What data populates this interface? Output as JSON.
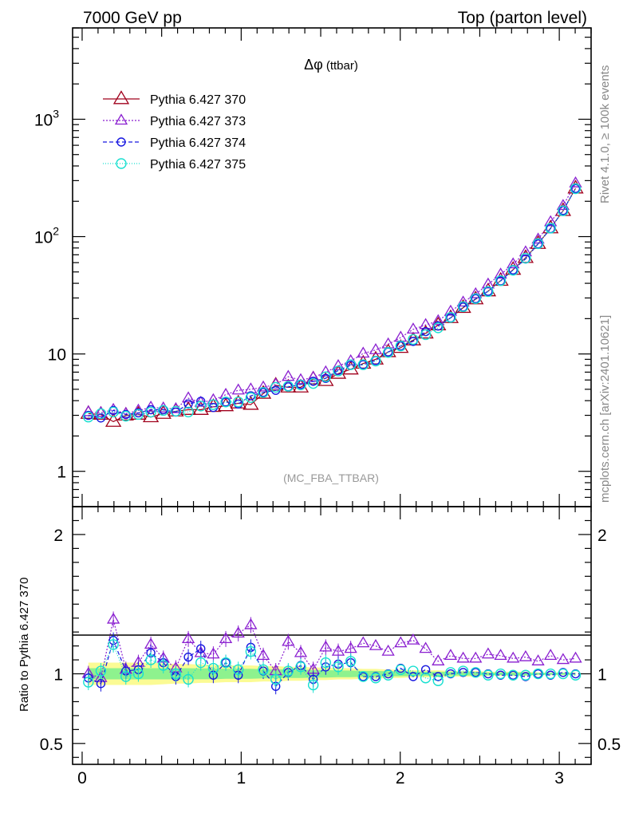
{
  "header": {
    "energy_label": "7000 GeV pp",
    "process_label": "Top (parton level)"
  },
  "side_labels": {
    "rivet": "Rivet 4.1.0, ≥ 100k events",
    "mcplots": "mcplots.cern.ch [arXiv:2401.10621]"
  },
  "colors": {
    "s370": "#a0001c",
    "s373": "#8a1fd0",
    "s374": "#1818e0",
    "s375": "#18e0d0",
    "band_outer": "#fbfb94",
    "band_inner": "#8ef28e"
  },
  "chart_data": [
    {
      "type": "line",
      "panel": "main",
      "title_symbol": "Δφ",
      "title_suffix": "(ttbar)",
      "analysis_label": "(MC_FBA_TTBAR)",
      "xlabel": "",
      "ylabel": "",
      "yscale": "log",
      "xlim": [
        -0.06,
        3.2
      ],
      "ylim": [
        0.5,
        6000
      ],
      "y_ticks": [
        1,
        10,
        100,
        1000
      ],
      "y_tick_labels": [
        "1",
        "10",
        "10^2",
        "10^3"
      ],
      "legend_position": "top-left",
      "x": [
        0.0393,
        0.1178,
        0.1963,
        0.2749,
        0.3534,
        0.432,
        0.5105,
        0.589,
        0.6676,
        0.7461,
        0.8247,
        0.9032,
        0.9817,
        1.0603,
        1.1388,
        1.2174,
        1.2959,
        1.3744,
        1.453,
        1.5315,
        1.6101,
        1.6886,
        1.7671,
        1.8457,
        1.9242,
        2.0028,
        2.0813,
        2.1598,
        2.2384,
        2.3169,
        2.3955,
        2.474,
        2.5525,
        2.6311,
        2.7096,
        2.7882,
        2.8667,
        2.9452,
        3.0238,
        3.1023
      ],
      "series": [
        {
          "name": "Pythia 6.427 370",
          "color_key": "s370",
          "marker": "triangle",
          "dash": "",
          "size": 9,
          "values": [
            3.1,
            3.05,
            2.65,
            3.0,
            3.05,
            2.9,
            3.1,
            3.25,
            3.35,
            3.35,
            3.55,
            3.6,
            3.8,
            3.7,
            4.6,
            5.4,
            5.2,
            5.2,
            6.1,
            5.9,
            6.8,
            7.4,
            8.3,
            9.0,
            10.4,
            11.3,
            13.1,
            15.0,
            17.6,
            20.3,
            24.8,
            29.3,
            34.3,
            42.2,
            52.3,
            66.0,
            87.0,
            118,
            166,
            258
          ]
        },
        {
          "name": "Pythia 6.427 373",
          "color_key": "s373",
          "marker": "triangle",
          "dash": "2,2",
          "size": 7,
          "values": [
            3.2,
            3.15,
            3.35,
            3.1,
            3.3,
            3.5,
            3.45,
            3.4,
            4.2,
            3.85,
            4.05,
            4.5,
            4.9,
            5.0,
            5.2,
            5.5,
            6.4,
            6.0,
            6.3,
            7.0,
            7.9,
            8.7,
            10.1,
            10.8,
            12.1,
            13.8,
            16.2,
            17.7,
            19.1,
            23.0,
            27.5,
            32.4,
            39.2,
            47.6,
            58.2,
            73.7,
            94.7,
            133,
            183,
            285
          ]
        },
        {
          "name": "Pythia 6.427 374",
          "color_key": "s374",
          "marker": "circle",
          "dash": "5,3",
          "size": 5,
          "values": [
            3.0,
            2.85,
            3.3,
            3.05,
            3.15,
            3.35,
            3.35,
            3.2,
            3.75,
            3.95,
            3.5,
            3.9,
            3.75,
            4.4,
            4.7,
            4.9,
            5.25,
            5.5,
            5.85,
            6.2,
            7.25,
            8.0,
            8.1,
            8.8,
            10.4,
            11.7,
            12.8,
            15.5,
            17.3,
            20.3,
            25.1,
            29.6,
            34.2,
            41.9,
            52.0,
            64.5,
            86.6,
            117,
            167,
            257
          ]
        },
        {
          "name": "Pythia 6.427 375",
          "color_key": "s375",
          "marker": "circle",
          "dash": "1,2",
          "size": 6,
          "values": [
            2.9,
            3.1,
            3.2,
            2.95,
            3.05,
            3.2,
            3.3,
            3.25,
            3.2,
            3.6,
            3.7,
            3.9,
            3.9,
            4.25,
            4.7,
            5.2,
            5.3,
            5.45,
            5.6,
            6.4,
            7.15,
            8.1,
            8.1,
            8.7,
            10.3,
            11.7,
            13.3,
            14.6,
            16.7,
            20.5,
            25.3,
            29.6,
            34.0,
            42.1,
            51.6,
            65.5,
            87.1,
            118,
            166,
            256
          ]
        }
      ]
    },
    {
      "type": "line",
      "panel": "ratio",
      "ylabel": "Ratio to Pythia 6.427 370",
      "xlabel": "",
      "xlim": [
        -0.06,
        3.2
      ],
      "ylim": [
        0.35,
        2.2
      ],
      "x_ticks": [
        0,
        1,
        2,
        3
      ],
      "y_ticks": [
        0.5,
        1,
        2
      ],
      "y_tick_labels": [
        "0.5",
        "1",
        "2"
      ],
      "band_inner_halfwidth": 0.04,
      "band_outer_halfwidth": [
        0.08,
        0.08,
        0.08,
        0.08,
        0.08,
        0.08,
        0.075,
        0.07,
        0.07,
        0.065,
        0.065,
        0.06,
        0.06,
        0.06,
        0.055,
        0.055,
        0.05,
        0.05,
        0.045,
        0.045,
        0.04,
        0.04,
        0.035,
        0.035,
        0.03,
        0.03,
        0.025,
        0.025,
        0.025,
        0.02,
        0.02,
        0.02,
        0.015,
        0.015,
        0.015,
        0.015,
        0.01,
        0.01,
        0.01,
        0.01
      ],
      "series": [
        {
          "name": "Pythia 6.427 373",
          "color_key": "s373",
          "marker": "triangle",
          "dash": "2,2",
          "size": 7,
          "values": [
            1.0,
            0.97,
            1.39,
            1.03,
            1.08,
            1.21,
            1.11,
            1.04,
            1.25,
            1.15,
            1.14,
            1.25,
            1.29,
            1.35,
            1.13,
            1.02,
            1.23,
            1.15,
            1.03,
            1.19,
            1.16,
            1.18,
            1.22,
            1.2,
            1.16,
            1.22,
            1.24,
            1.18,
            1.09,
            1.13,
            1.11,
            1.11,
            1.14,
            1.13,
            1.11,
            1.12,
            1.09,
            1.13,
            1.1,
            1.11
          ]
        },
        {
          "name": "Pythia 6.427 374",
          "color_key": "s374",
          "marker": "circle",
          "dash": "5,3",
          "size": 5,
          "values": [
            0.97,
            0.93,
            1.24,
            1.02,
            1.03,
            1.15,
            1.08,
            0.98,
            1.12,
            1.18,
            0.99,
            1.08,
            0.99,
            1.19,
            1.02,
            0.91,
            1.01,
            1.06,
            0.96,
            1.05,
            1.07,
            1.08,
            0.98,
            0.98,
            1.0,
            1.04,
            0.98,
            1.03,
            0.98,
            1.0,
            1.01,
            1.01,
            1.0,
            0.99,
            0.99,
            0.98,
            1.0,
            0.99,
            1.01,
            1.0
          ]
        },
        {
          "name": "Pythia 6.427 375",
          "color_key": "s375",
          "marker": "circle",
          "dash": "1,2",
          "size": 6,
          "values": [
            0.94,
            1.02,
            1.21,
            0.98,
            1.0,
            1.1,
            1.06,
            1.0,
            0.96,
            1.08,
            1.04,
            1.08,
            1.03,
            1.16,
            1.03,
            0.96,
            1.02,
            1.05,
            0.92,
            1.08,
            1.05,
            1.09,
            0.98,
            0.97,
            0.99,
            1.03,
            1.02,
            0.97,
            0.95,
            1.01,
            1.02,
            1.01,
            0.99,
            1.0,
            0.99,
            0.99,
            1.0,
            1.0,
            1.0,
            0.99
          ]
        }
      ]
    }
  ]
}
